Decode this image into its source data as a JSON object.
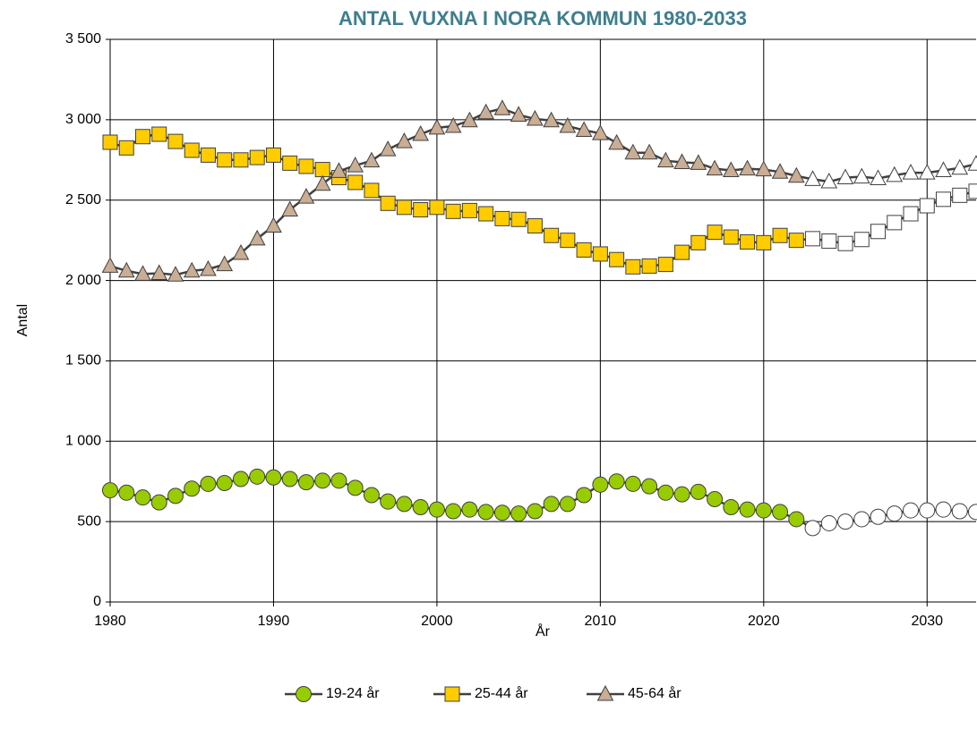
{
  "chart_data": {
    "type": "line",
    "title": "ANTAL VUXNA I NORA KOMMUN 1980-2033",
    "x_label": "År",
    "y_label": "Antal",
    "x": [
      1980,
      1981,
      1982,
      1983,
      1984,
      1985,
      1986,
      1987,
      1988,
      1989,
      1990,
      1991,
      1992,
      1993,
      1994,
      1995,
      1996,
      1997,
      1998,
      1999,
      2000,
      2001,
      2002,
      2003,
      2004,
      2005,
      2006,
      2007,
      2008,
      2009,
      2010,
      2011,
      2012,
      2013,
      2014,
      2015,
      2016,
      2017,
      2018,
      2019,
      2020,
      2021,
      2022,
      2023,
      2024,
      2025,
      2026,
      2027,
      2028,
      2029,
      2030,
      2031,
      2032,
      2033
    ],
    "series": [
      {
        "name": "19-24 år",
        "color": "#99cc00",
        "marker": "circle",
        "values": [
          695,
          680,
          650,
          620,
          660,
          705,
          735,
          740,
          765,
          780,
          775,
          765,
          745,
          755,
          755,
          710,
          665,
          625,
          610,
          590,
          575,
          565,
          575,
          560,
          555,
          550,
          565,
          610,
          610,
          665,
          730,
          750,
          735,
          720,
          680,
          670,
          685,
          640,
          590,
          575,
          570,
          560,
          515,
          460,
          490,
          500,
          515,
          530,
          550,
          570,
          570,
          575,
          565,
          560
        ]
      },
      {
        "name": "25-44 år",
        "color": "#ffcc00",
        "marker": "square",
        "values": [
          2860,
          2825,
          2895,
          2910,
          2865,
          2810,
          2780,
          2750,
          2750,
          2765,
          2780,
          2730,
          2710,
          2690,
          2640,
          2610,
          2560,
          2480,
          2455,
          2440,
          2455,
          2430,
          2435,
          2415,
          2385,
          2380,
          2340,
          2280,
          2250,
          2190,
          2165,
          2130,
          2085,
          2090,
          2100,
          2175,
          2235,
          2300,
          2270,
          2240,
          2235,
          2280,
          2250,
          2260,
          2245,
          2230,
          2255,
          2305,
          2360,
          2415,
          2465,
          2505,
          2530,
          2555
        ]
      },
      {
        "name": "45-64 år",
        "color": "#c9ad94",
        "marker": "triangle",
        "values": [
          2090,
          2060,
          2040,
          2045,
          2035,
          2060,
          2070,
          2100,
          2170,
          2260,
          2340,
          2440,
          2520,
          2600,
          2680,
          2715,
          2745,
          2815,
          2865,
          2910,
          2950,
          2960,
          2995,
          3045,
          3070,
          3030,
          3005,
          2995,
          2960,
          2935,
          2915,
          2855,
          2795,
          2795,
          2745,
          2735,
          2730,
          2695,
          2685,
          2695,
          2690,
          2675,
          2650,
          2630,
          2615,
          2640,
          2645,
          2635,
          2655,
          2670,
          2670,
          2685,
          2700,
          2725
        ]
      }
    ],
    "line_color": "#404040",
    "projection_from": 2023,
    "projection_color": "#ffffff",
    "xlim": [
      1980,
      2033
    ],
    "xticks": [
      1980,
      1990,
      2000,
      2010,
      2020,
      2030
    ],
    "ylim": [
      0,
      3500
    ],
    "yticks": [
      0,
      500,
      {
        "value": 1000,
        "label": "1 000"
      },
      {
        "value": 1500,
        "label": "1 500"
      },
      {
        "value": 2000,
        "label": "2 000"
      },
      {
        "value": 2500,
        "label": "2 500"
      },
      {
        "value": 3000,
        "label": "3 000"
      },
      {
        "value": 3500,
        "label": "3 500"
      }
    ],
    "grid": true,
    "legend": "bottom"
  }
}
